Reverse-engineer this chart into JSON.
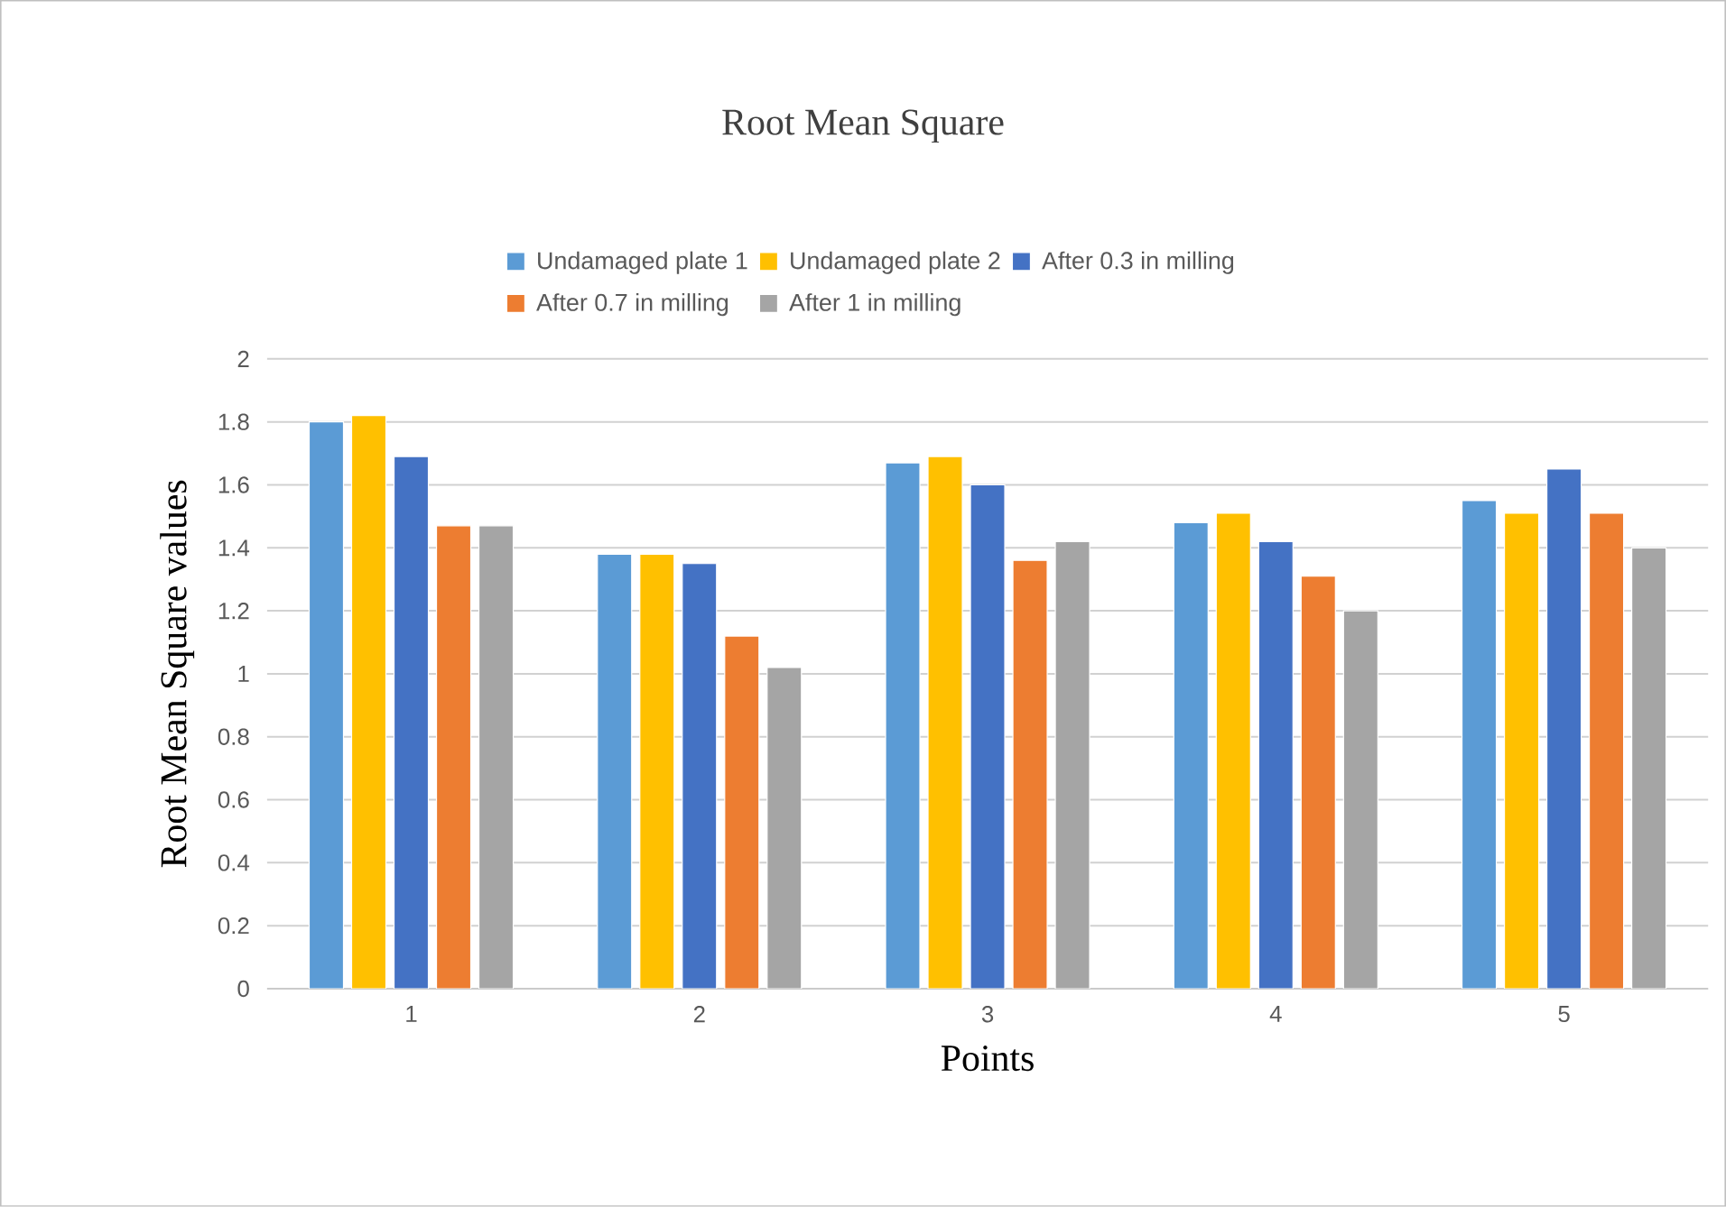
{
  "chart_data": {
    "type": "bar",
    "title": "Root Mean Square",
    "xlabel": "Points",
    "ylabel": "Root Mean Square values",
    "categories": [
      "1",
      "2",
      "3",
      "4",
      "5"
    ],
    "series": [
      {
        "name": "Undamaged plate 1",
        "color": "#5b9bd5",
        "values": [
          1.8,
          1.38,
          1.67,
          1.48,
          1.55
        ]
      },
      {
        "name": "Undamaged plate 2",
        "color": "#ffc000",
        "values": [
          1.82,
          1.38,
          1.69,
          1.51,
          1.51
        ]
      },
      {
        "name": "After 0.3 in milling",
        "color": "#4472c4",
        "values": [
          1.69,
          1.35,
          1.6,
          1.42,
          1.65
        ]
      },
      {
        "name": "After 0.7 in milling",
        "color": "#ed7d31",
        "values": [
          1.47,
          1.12,
          1.36,
          1.31,
          1.51
        ]
      },
      {
        "name": "After 1 in milling",
        "color": "#a5a5a5",
        "values": [
          1.47,
          1.02,
          1.42,
          1.2,
          1.4
        ]
      }
    ],
    "ylim": [
      0,
      2
    ],
    "yticks": [
      0,
      0.2,
      0.4,
      0.6,
      0.8,
      1,
      1.2,
      1.4,
      1.6,
      1.8,
      2
    ],
    "grid": "y",
    "legend": "top"
  }
}
